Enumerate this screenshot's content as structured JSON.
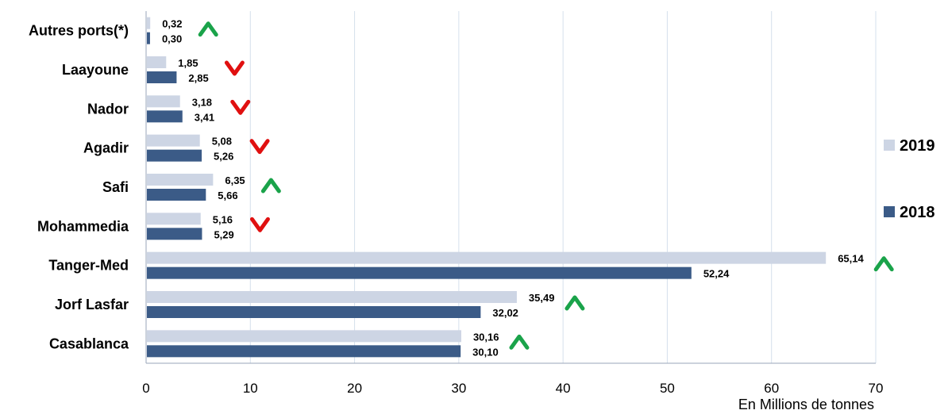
{
  "chart_data": {
    "type": "bar",
    "orientation": "horizontal",
    "categories": [
      "Autres ports(*)",
      "Laayoune",
      "Nador",
      "Agadir",
      "Safi",
      "Mohammedia",
      "Tanger-Med",
      "Jorf Lasfar",
      "Casablanca"
    ],
    "series": [
      {
        "name": "2019",
        "color": "#cdd5e4",
        "values": [
          0.32,
          1.85,
          3.18,
          5.08,
          6.35,
          5.16,
          65.14,
          35.49,
          30.16
        ],
        "labels": [
          "0,32",
          "1,85",
          "3,18",
          "5,08",
          "6,35",
          "5,16",
          "65,14",
          "35,49",
          "30,16"
        ]
      },
      {
        "name": "2018",
        "color": "#3b5b87",
        "values": [
          0.3,
          2.85,
          3.41,
          5.26,
          5.66,
          5.29,
          52.24,
          32.02,
          30.1
        ],
        "labels": [
          "0,30",
          "2,85",
          "3,41",
          "5,26",
          "5,66",
          "5,29",
          "52,24",
          "32,02",
          "30,10"
        ]
      }
    ],
    "trend": [
      "up",
      "down",
      "down",
      "down",
      "up",
      "down",
      "up",
      "up",
      "up"
    ],
    "trend_colors": {
      "up": "#1aa34a",
      "down": "#e01010"
    },
    "xlim": [
      0,
      70
    ],
    "xticks": [
      "0",
      "10",
      "20",
      "30",
      "40",
      "50",
      "60",
      "70"
    ],
    "xlabel": "En Millions de tonnes",
    "grid": "vertical",
    "legend_position": "right"
  }
}
